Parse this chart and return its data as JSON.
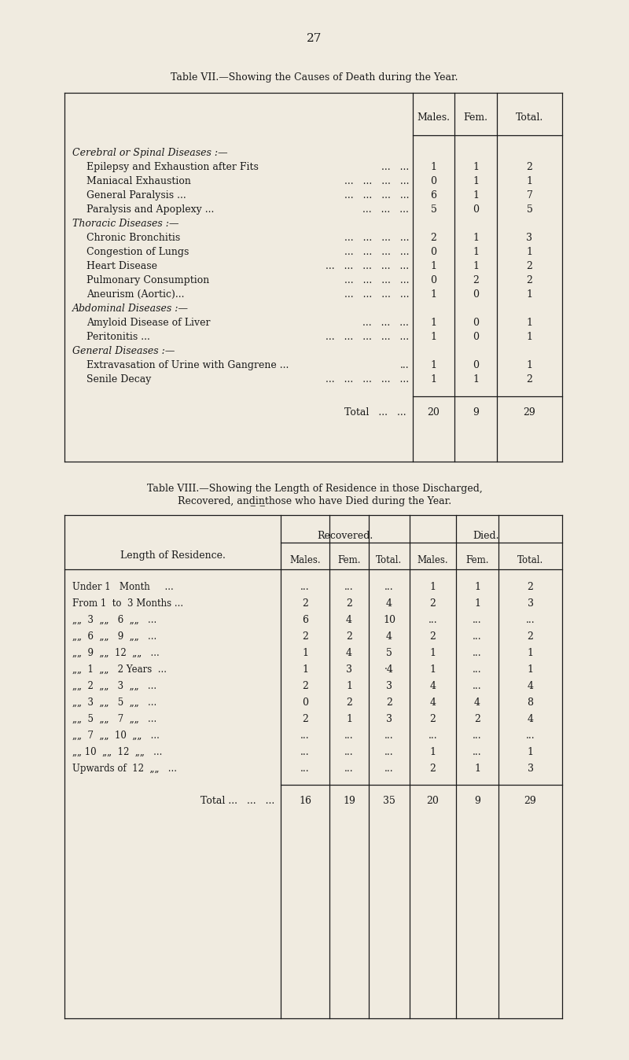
{
  "bg_color": "#f0ebe0",
  "text_color": "#1a1a1a",
  "page_number": "27",
  "table7_title": "Table VII.—Showing the Causes of Death during the Year.",
  "table7_headers": [
    "Males.",
    "Fem.",
    "Total."
  ],
  "table7_rows": [
    {
      "type": "section",
      "text": "Cerebral or Spinal Diseases :—"
    },
    {
      "type": "data",
      "label": "Epilepsy and Exhaustion after Fits",
      "dots": "...   ...",
      "m": "1",
      "f": "1",
      "t": "2"
    },
    {
      "type": "data",
      "label": "Maniacal Exhaustion",
      "dots": "...   ...   ...   ...",
      "m": "0",
      "f": "1",
      "t": "1"
    },
    {
      "type": "data",
      "label": "General Paralysis ...",
      "dots": "...   ...   ...   ...",
      "m": "6",
      "f": "1",
      "t": "7"
    },
    {
      "type": "data",
      "label": "Paralysis and Apoplexy ...",
      "dots": "...   ...   ...",
      "m": "5",
      "f": "0",
      "t": "5"
    },
    {
      "type": "section",
      "text": "Thoracic Diseases :—"
    },
    {
      "type": "data",
      "label": "Chronic Bronchitis",
      "dots": "...   ...   ...   ...",
      "m": "2",
      "f": "1",
      "t": "3"
    },
    {
      "type": "data",
      "label": "Congestion of Lungs",
      "dots": "...   ...   ...   ...",
      "m": "0",
      "f": "1",
      "t": "1"
    },
    {
      "type": "data",
      "label": "Heart Disease",
      "dots": "...   ...   ...   ...   ...",
      "m": "1",
      "f": "1",
      "t": "2"
    },
    {
      "type": "data",
      "label": "Pulmonary Consumption",
      "dots": "...   ...   ...   ...",
      "m": "0",
      "f": "2",
      "t": "2"
    },
    {
      "type": "data",
      "label": "Aneurism (Aortic)...",
      "dots": "...   ...   ...   ...",
      "m": "1",
      "f": "0",
      "t": "1"
    },
    {
      "type": "section",
      "text": "Abdominal Diseases :—"
    },
    {
      "type": "data",
      "label": "Amyloid Disease of Liver",
      "dots": "...   ...   ...",
      "m": "1",
      "f": "0",
      "t": "1"
    },
    {
      "type": "data",
      "label": "Peritonitis ...",
      "dots": "...   ...   ...   ...   ...",
      "m": "1",
      "f": "0",
      "t": "1"
    },
    {
      "type": "section",
      "text": "General Diseases :—"
    },
    {
      "type": "data",
      "label": "Extravasation of Urine with Gangrene ...",
      "dots": "...",
      "m": "1",
      "f": "0",
      "t": "1"
    },
    {
      "type": "data",
      "label": "Senile Decay",
      "dots": "...   ...   ...   ...   ...",
      "m": "1",
      "f": "1",
      "t": "2"
    }
  ],
  "table7_total": [
    "20",
    "9",
    "29"
  ],
  "table8_title_line1": "Table VIII.—Showing the Length of Residence in those Discharged,",
  "table8_title_line2": "Recovered, and̲in̲those who have Died during the Year.",
  "table8_rows": [
    [
      "Under 1   Month   ...",
      "...",
      "...",
      "...",
      "1",
      "1",
      "2"
    ],
    [
      "From 1  to  3 Months ...",
      "2",
      "2",
      "4",
      "2",
      "1",
      "3"
    ],
    [
      ",, 3  ,,  6 ,,  ...",
      "6",
      "4",
      "10",
      "...",
      "...",
      "..."
    ],
    [
      ",, 6  ,,  9 ,,  ...",
      "2",
      "2",
      "4",
      "2",
      "...",
      "2"
    ],
    [
      ",, 9  ,,  12 ,,  ...",
      "1",
      "4",
      "5",
      "1",
      "...",
      "1"
    ],
    [
      ",, 1  ,,  2 Years  ...",
      "1",
      "3",
      "·4",
      "1",
      "...",
      "1"
    ],
    [
      ",, 2  ,,  3 ,,  ...",
      "2",
      "1",
      "3",
      "4",
      "...",
      "4"
    ],
    [
      ",, 3  ,,  5 ,,  ...",
      "0",
      "2",
      "2",
      "4",
      "4",
      "8"
    ],
    [
      ",, 5  ,,  7 ,,  ...",
      "2",
      "1",
      "3",
      "2",
      "2",
      "4"
    ],
    [
      ",, 7  ,,  10 ,,  ...",
      "...",
      "...",
      "...",
      "...",
      "...",
      "..."
    ],
    [
      ",, 10  ,,  12 ,,  ...",
      "...",
      "...",
      "...",
      "1",
      "...",
      "1"
    ],
    [
      "Upwards of  12 ,,  ...",
      "...",
      "...",
      "...",
      "2",
      "1",
      "3"
    ]
  ],
  "table8_total": [
    "16",
    "19",
    "35",
    "20",
    "9",
    "29"
  ]
}
